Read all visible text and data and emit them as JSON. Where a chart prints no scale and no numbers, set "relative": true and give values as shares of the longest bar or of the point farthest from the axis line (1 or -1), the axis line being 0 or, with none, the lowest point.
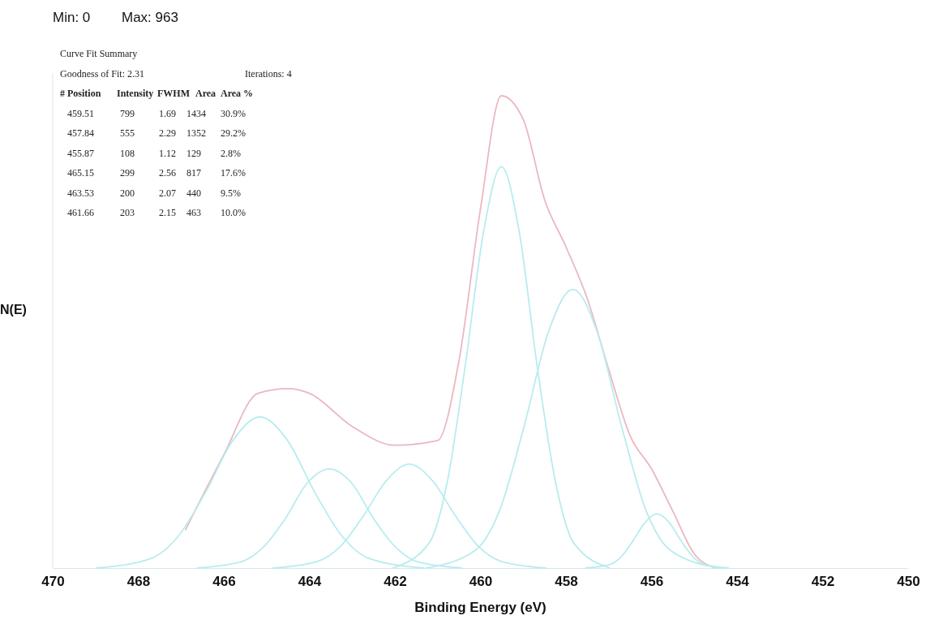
{
  "chart_data": {
    "type": "line",
    "xlabel": "Binding Energy (eV)",
    "ylabel": "N(E)",
    "relative": true,
    "xlim": [
      470,
      450
    ],
    "xticks": [
      470,
      468,
      466,
      464,
      462,
      460,
      458,
      456,
      454,
      452,
      450
    ],
    "grid": false,
    "marker": "none",
    "line_style": "solid",
    "annotations": [
      "Min: 0",
      "Max: 963",
      "Curve Fit Summary",
      "Goodness of Fit: 2.31\tIterations: 4",
      "# Position\tIntensity\tFWHM\tArea\tArea %",
      "459.51\t799\t1.69\t1434\t30.9%",
      "457.84\t555\t2.29\t1352\t29.2%",
      "455.87\t108\t1.12\t129\t2.8%",
      "465.15\t299\t2.56\t817\t17.6%",
      "463.53\t200\t2.07\t440\t9.5%",
      "461.66\t203\t2.15\t463\t10.0%"
    ],
    "series": [
      {
        "color": "#eab8c0",
        "x": [
          466.9,
          466,
          465.2,
          464.5,
          464,
          463,
          462,
          461,
          460.5,
          460,
          459.51,
          459,
          458.5,
          458,
          457.5,
          457,
          456.5,
          456,
          455.5,
          455,
          454.5
        ],
        "values": [
          0.08,
          0.24,
          0.37,
          0.38,
          0.37,
          0.3,
          0.26,
          0.27,
          0.44,
          0.76,
          1.0,
          0.95,
          0.78,
          0.68,
          0.57,
          0.42,
          0.28,
          0.21,
          0.12,
          0.03,
          0
        ]
      },
      {
        "color": "#b8ecef",
        "x": [
          462.05,
          461.2,
          460.78,
          460.36,
          459.93,
          459.51,
          459.09,
          458.67,
          458.24,
          457.82,
          456.97
        ],
        "values": [
          0,
          0.053,
          0.18,
          0.425,
          0.71,
          0.85,
          0.71,
          0.425,
          0.18,
          0.053,
          0
        ]
      },
      {
        "color": "#b8ecef",
        "x": [
          461.28,
          460.13,
          459.56,
          458.98,
          458.41,
          457.84,
          457.27,
          456.7,
          456.12,
          455.55,
          454.4
        ],
        "values": [
          0,
          0.037,
          0.12,
          0.3,
          0.5,
          0.59,
          0.5,
          0.3,
          0.12,
          0.037,
          0
        ]
      },
      {
        "color": "#b8ecef",
        "x": [
          457.55,
          456.99,
          456.71,
          456.43,
          456.15,
          455.87,
          455.59,
          455.31,
          455.03,
          454.75,
          454.19
        ],
        "values": [
          0,
          0.007,
          0.024,
          0.058,
          0.097,
          0.115,
          0.097,
          0.058,
          0.024,
          0.007,
          0
        ]
      },
      {
        "color": "#b8ecef",
        "x": [
          468.99,
          467.71,
          467.07,
          466.43,
          465.79,
          465.15,
          464.51,
          463.87,
          463.23,
          462.59,
          461.31
        ],
        "values": [
          0,
          0.02,
          0.067,
          0.16,
          0.27,
          0.32,
          0.27,
          0.16,
          0.067,
          0.02,
          0
        ]
      },
      {
        "color": "#b8ecef",
        "x": [
          466.63,
          465.6,
          465.08,
          464.56,
          464.05,
          463.53,
          463.01,
          462.5,
          461.98,
          461.46,
          460.43
        ],
        "values": [
          0,
          0.013,
          0.044,
          0.105,
          0.18,
          0.21,
          0.18,
          0.105,
          0.044,
          0.013,
          0
        ]
      },
      {
        "color": "#b8ecef",
        "x": [
          464.86,
          463.81,
          463.27,
          462.74,
          462.2,
          461.66,
          461.12,
          460.58,
          460.05,
          459.51,
          458.46
        ],
        "values": [
          0,
          0.014,
          0.046,
          0.11,
          0.185,
          0.22,
          0.185,
          0.11,
          0.046,
          0.014,
          0
        ]
      }
    ]
  }
}
